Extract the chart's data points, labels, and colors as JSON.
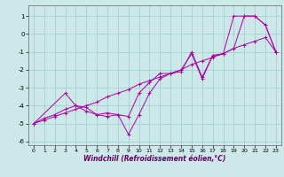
{
  "xlabel": "Windchill (Refroidissement éolien,°C)",
  "bg_color": "#cce8e8",
  "line_color": "#aa00aa",
  "grid_color": "#99cccc",
  "xlim": [
    -0.5,
    23.5
  ],
  "ylim": [
    -6.2,
    1.6
  ],
  "yticks": [
    -6,
    -5,
    -4,
    -3,
    -2,
    -1,
    0,
    1
  ],
  "xticks": [
    0,
    1,
    2,
    3,
    4,
    5,
    6,
    7,
    8,
    9,
    10,
    11,
    12,
    13,
    14,
    15,
    16,
    17,
    18,
    19,
    20,
    21,
    22,
    23
  ],
  "series1_x": [
    0,
    1,
    2,
    3,
    4,
    5,
    6,
    7,
    8,
    9,
    10,
    11,
    12,
    13,
    14,
    15,
    16,
    17,
    18,
    19,
    20,
    21,
    22,
    23
  ],
  "series1_y": [
    -5.0,
    -4.8,
    -4.6,
    -4.4,
    -4.2,
    -4.0,
    -3.8,
    -3.5,
    -3.3,
    -3.1,
    -2.8,
    -2.6,
    -2.4,
    -2.2,
    -2.0,
    -1.7,
    -1.5,
    -1.3,
    -1.1,
    -0.8,
    -0.6,
    -0.4,
    -0.2,
    -1.0
  ],
  "series2_x": [
    0,
    3,
    4,
    5,
    6,
    7,
    8,
    9,
    10,
    11,
    12,
    13,
    14,
    15,
    16,
    17,
    18,
    19,
    20,
    21,
    22,
    23
  ],
  "series2_y": [
    -5.0,
    -3.3,
    -4.0,
    -4.1,
    -4.5,
    -4.4,
    -4.5,
    -5.6,
    -4.5,
    -3.3,
    -2.5,
    -2.2,
    -2.0,
    -1.1,
    -2.5,
    -1.2,
    -1.1,
    1.0,
    1.0,
    1.0,
    0.5,
    -1.0
  ],
  "series3_x": [
    0,
    1,
    2,
    3,
    4,
    5,
    6,
    7,
    8,
    9,
    10,
    11,
    12,
    13,
    14,
    15,
    16,
    17,
    18,
    19,
    20,
    21,
    22,
    23
  ],
  "series3_y": [
    -5.0,
    -4.7,
    -4.5,
    -4.2,
    -4.0,
    -4.3,
    -4.5,
    -4.6,
    -4.5,
    -4.6,
    -3.3,
    -2.7,
    -2.2,
    -2.2,
    -2.1,
    -1.0,
    -2.4,
    -1.2,
    -1.1,
    -0.8,
    1.0,
    1.0,
    0.5,
    -1.0
  ]
}
